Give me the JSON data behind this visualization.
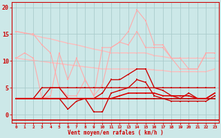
{
  "background_color": "#cce8e8",
  "grid_color": "#aacccc",
  "xlabel": "Vent moyen/en rafales ( km/h )",
  "xlabel_color": "#cc0000",
  "ylabel_values": [
    0,
    5,
    10,
    15,
    20
  ],
  "xlim": [
    -0.5,
    23.5
  ],
  "ylim": [
    -1.5,
    21
  ],
  "x": [
    0,
    1,
    2,
    3,
    4,
    5,
    6,
    7,
    8,
    9,
    10,
    11,
    12,
    13,
    14,
    15,
    16,
    17,
    18,
    19,
    20,
    21,
    22,
    23
  ],
  "series": [
    {
      "y": [
        10.5,
        11.5,
        10.5,
        3.0,
        3.5,
        11.5,
        6.5,
        10.5,
        6.5,
        3.5,
        12.5,
        12.5,
        13.5,
        15.5,
        19.5,
        17.5,
        13.0,
        13.0,
        10.5,
        8.5,
        8.5,
        8.5,
        11.5,
        11.5
      ],
      "color": "#ffaaaa",
      "lw": 0.8,
      "marker": "s",
      "ms": 1.8,
      "zorder": 2
    },
    {
      "y": [
        15.5,
        15.2,
        15.0,
        13.0,
        11.5,
        5.0,
        3.5,
        3.5,
        6.5,
        3.5,
        5.5,
        12.5,
        13.5,
        13.0,
        15.5,
        12.5,
        12.5,
        12.5,
        10.5,
        10.5,
        8.5,
        8.5,
        11.5,
        11.5
      ],
      "color": "#ffaaaa",
      "lw": 0.8,
      "marker": "s",
      "ms": 1.8,
      "zorder": 2
    },
    {
      "y": [
        15.5,
        15.2,
        14.8,
        14.4,
        14.1,
        13.7,
        13.3,
        13.0,
        12.6,
        12.2,
        11.9,
        11.5,
        11.5,
        11.5,
        11.5,
        11.5,
        11.0,
        10.8,
        10.5,
        10.5,
        10.5,
        10.5,
        10.5,
        10.5
      ],
      "color": "#ffbbbb",
      "lw": 1.0,
      "marker": "s",
      "ms": 1.5,
      "zorder": 1
    },
    {
      "y": [
        10.5,
        10.3,
        10.1,
        9.9,
        9.7,
        9.5,
        9.3,
        9.1,
        8.9,
        8.7,
        8.5,
        8.5,
        8.5,
        8.5,
        8.5,
        8.5,
        8.3,
        8.2,
        8.0,
        8.0,
        8.0,
        8.0,
        8.0,
        8.5
      ],
      "color": "#ffbbbb",
      "lw": 1.0,
      "marker": "s",
      "ms": 1.5,
      "zorder": 1
    },
    {
      "y": [
        3.0,
        3.0,
        3.0,
        5.0,
        5.0,
        5.0,
        5.0,
        5.0,
        5.0,
        5.0,
        5.0,
        5.0,
        5.0,
        5.0,
        5.0,
        5.0,
        5.0,
        5.0,
        5.0,
        5.0,
        5.0,
        5.0,
        5.0,
        5.0
      ],
      "color": "#cc0000",
      "lw": 1.0,
      "marker": "s",
      "ms": 1.8,
      "zorder": 3
    },
    {
      "y": [
        3.0,
        3.0,
        3.0,
        3.0,
        5.0,
        5.0,
        3.0,
        3.0,
        3.0,
        3.0,
        4.0,
        6.5,
        6.5,
        7.5,
        8.5,
        8.5,
        5.0,
        4.5,
        3.5,
        3.0,
        4.0,
        3.0,
        3.0,
        4.0
      ],
      "color": "#cc0000",
      "lw": 1.0,
      "marker": "s",
      "ms": 1.8,
      "zorder": 3
    },
    {
      "y": [
        3.0,
        3.0,
        3.0,
        3.0,
        3.0,
        3.0,
        1.0,
        2.5,
        3.0,
        0.5,
        0.5,
        4.0,
        4.5,
        5.0,
        6.5,
        6.0,
        3.5,
        3.0,
        2.5,
        2.5,
        2.5,
        2.5,
        2.5,
        3.5
      ],
      "color": "#cc0000",
      "lw": 1.0,
      "marker": "s",
      "ms": 1.8,
      "zorder": 3
    },
    {
      "y": [
        3.0,
        3.0,
        3.0,
        3.0,
        3.0,
        3.0,
        3.0,
        3.0,
        3.0,
        3.0,
        3.0,
        3.0,
        3.5,
        4.0,
        4.0,
        4.0,
        4.0,
        3.5,
        3.5,
        3.5,
        3.5,
        3.0,
        3.0,
        4.0
      ],
      "color": "#dd0000",
      "lw": 1.2,
      "marker": "s",
      "ms": 1.8,
      "zorder": 4
    },
    {
      "y": [
        3.0,
        3.0,
        3.0,
        3.0,
        3.0,
        3.0,
        3.0,
        3.0,
        3.0,
        3.0,
        3.0,
        3.0,
        3.0,
        3.0,
        3.0,
        3.0,
        3.0,
        3.0,
        3.0,
        3.0,
        3.0,
        3.0,
        3.0,
        3.0
      ],
      "color": "#bb0000",
      "lw": 1.2,
      "marker": "s",
      "ms": 1.8,
      "zorder": 3
    }
  ]
}
